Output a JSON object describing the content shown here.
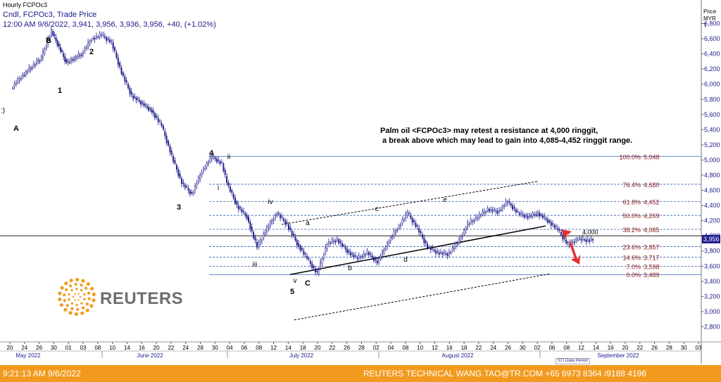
{
  "header": {
    "title": "Hourly FCPOc3",
    "line1": "Cndl, FCPOc3, Trade Price",
    "line2": "12:00 AM 9/6/2022, 3,941, 3,956, 3,936, 3,956, +40, (+1.02%)"
  },
  "axis_caption": [
    "Price",
    "MYR",
    "T"
  ],
  "annotation": "Palm oil <FCPOc3> may retest a resistance at 4,000 ringgit,\n a break above which may lead to gain into 4,085-4,452 ringgit range.",
  "logo": {
    "text": "REUTERS"
  },
  "footer": {
    "time": "9:21:13 AM 9/6/2022",
    "credit": "REUTERS TECHNICAL  WANG.TAO@TR.COM  +65 6973 8364 /9188 4196"
  },
  "data_period_label": "STI Data Period",
  "colors": {
    "candle": "#1a1a8c",
    "fib_line": "#2f5bb3",
    "fib_label": "#8b1a1a",
    "arrow": "#e03030",
    "footer": "#f29a1e",
    "axis_text": "#1a1a8c"
  },
  "chart_data": {
    "type": "candlestick",
    "ylim": [
      2600,
      7000
    ],
    "yticks": [
      2800,
      3000,
      3200,
      3400,
      3600,
      3800,
      4000,
      4200,
      4400,
      4600,
      4800,
      5000,
      5200,
      5400,
      5600,
      5800,
      6000,
      6200,
      6400,
      6600,
      6800
    ],
    "ytick_labels": [
      "2,800",
      "3,000",
      "3,200",
      "3,400",
      "3,600",
      "3,800",
      "4,000",
      "4,200",
      "4,400",
      "4,600",
      "4,800",
      "5,000",
      "5,200",
      "5,400",
      "5,600",
      "5,800",
      "6,000",
      "6,200",
      "6,400",
      "6,600",
      "6,800"
    ],
    "x_day_ticks": [
      "20",
      "24",
      "26",
      "30",
      "01",
      "03",
      "08",
      "10",
      "14",
      "16",
      "20",
      "22",
      "24",
      "28",
      "30",
      "04",
      "06",
      "08",
      "12",
      "14",
      "18",
      "20",
      "22",
      "26",
      "28",
      "02",
      "04",
      "08",
      "10",
      "12",
      "16",
      "18",
      "22",
      "24",
      "26",
      "30",
      "02",
      "06",
      "08",
      "12",
      "14",
      "16",
      "20",
      "22",
      "26",
      "28",
      "30",
      "03"
    ],
    "x_months": [
      "May 2022",
      "June 2022",
      "July 2022",
      "August 2022",
      "September 2022"
    ],
    "last_price_label": "3,956",
    "resistance_label": "4,000",
    "resistance_level": 4000,
    "fib_levels": [
      {
        "label": "100.0%",
        "value": 5048,
        "value_label": "5,048"
      },
      {
        "label": "76.4%",
        "value": 4680,
        "value_label": "4,680"
      },
      {
        "label": "61.8%",
        "value": 4452,
        "value_label": "4,452"
      },
      {
        "label": "50.0%",
        "value": 4269,
        "value_label": "4,269"
      },
      {
        "label": "38.2%",
        "value": 4085,
        "value_label": "4,085"
      },
      {
        "label": "23.6%",
        "value": 3857,
        "value_label": "3,857"
      },
      {
        "label": "14.6%",
        "value": 3717,
        "value_label": "3,717"
      },
      {
        "label": "7.0%",
        "value": 3598,
        "value_label": "3,598"
      },
      {
        "label": "0.0%",
        "value": 3489,
        "value_label": "3,489"
      }
    ],
    "wave_labels": [
      "B",
      "2",
      "1",
      "A",
      ":)",
      "4",
      "ii",
      "i",
      "3",
      "iv",
      "iii",
      "v",
      "5",
      "C",
      "a",
      "b",
      "c",
      "d",
      "e"
    ],
    "price_path": [
      {
        "date": "2022-04-20",
        "price": 5950
      },
      {
        "date": "2022-04-22",
        "price": 6100
      },
      {
        "date": "2022-04-26",
        "price": 6350
      },
      {
        "date": "2022-04-28",
        "price": 6700
      },
      {
        "date": "2022-05-01",
        "price": 6280
      },
      {
        "date": "2022-05-04",
        "price": 6400
      },
      {
        "date": "2022-05-06",
        "price": 6600
      },
      {
        "date": "2022-05-08",
        "price": 6650
      },
      {
        "date": "2022-05-10",
        "price": 6550
      },
      {
        "date": "2022-05-12",
        "price": 6150
      },
      {
        "date": "2022-05-14",
        "price": 5850
      },
      {
        "date": "2022-05-18",
        "price": 5650
      },
      {
        "date": "2022-05-20",
        "price": 5450
      },
      {
        "date": "2022-05-22",
        "price": 5050
      },
      {
        "date": "2022-05-24",
        "price": 4700
      },
      {
        "date": "2022-05-26",
        "price": 4550
      },
      {
        "date": "2022-05-28",
        "price": 4850
      },
      {
        "date": "2022-05-30",
        "price": 5048
      },
      {
        "date": "2022-06-01",
        "price": 4950
      },
      {
        "date": "2022-06-02",
        "price": 4700
      },
      {
        "date": "2022-06-04",
        "price": 4400
      },
      {
        "date": "2022-06-06",
        "price": 4250
      },
      {
        "date": "2022-06-08",
        "price": 3850
      },
      {
        "date": "2022-06-10",
        "price": 4100
      },
      {
        "date": "2022-06-12",
        "price": 4300
      },
      {
        "date": "2022-06-14",
        "price": 4150
      },
      {
        "date": "2022-06-16",
        "price": 3900
      },
      {
        "date": "2022-06-18",
        "price": 3700
      },
      {
        "date": "2022-06-20",
        "price": 3500
      },
      {
        "date": "2022-06-22",
        "price": 3900
      },
      {
        "date": "2022-06-24",
        "price": 3950
      },
      {
        "date": "2022-06-26",
        "price": 3800
      },
      {
        "date": "2022-06-28",
        "price": 3700
      },
      {
        "date": "2022-06-30",
        "price": 3780
      },
      {
        "date": "2022-07-02",
        "price": 3650
      },
      {
        "date": "2022-07-04",
        "price": 3900
      },
      {
        "date": "2022-07-06",
        "price": 4100
      },
      {
        "date": "2022-07-08",
        "price": 4300
      },
      {
        "date": "2022-07-10",
        "price": 4100
      },
      {
        "date": "2022-07-12",
        "price": 3850
      },
      {
        "date": "2022-07-14",
        "price": 3780
      },
      {
        "date": "2022-07-16",
        "price": 3760
      },
      {
        "date": "2022-07-18",
        "price": 3900
      },
      {
        "date": "2022-07-20",
        "price": 4150
      },
      {
        "date": "2022-07-22",
        "price": 4250
      },
      {
        "date": "2022-07-24",
        "price": 4350
      },
      {
        "date": "2022-07-26",
        "price": 4320
      },
      {
        "date": "2022-07-28",
        "price": 4450
      },
      {
        "date": "2022-07-30",
        "price": 4300
      },
      {
        "date": "2022-08-01",
        "price": 4250
      },
      {
        "date": "2022-08-03",
        "price": 4300
      },
      {
        "date": "2022-08-05",
        "price": 4200
      },
      {
        "date": "2022-08-07",
        "price": 4080
      },
      {
        "date": "2022-08-09",
        "price": 3880
      },
      {
        "date": "2022-08-11",
        "price": 3960
      },
      {
        "date": "2022-08-13",
        "price": 3941
      },
      {
        "date": "2022-08-14",
        "price": 3956
      }
    ]
  }
}
